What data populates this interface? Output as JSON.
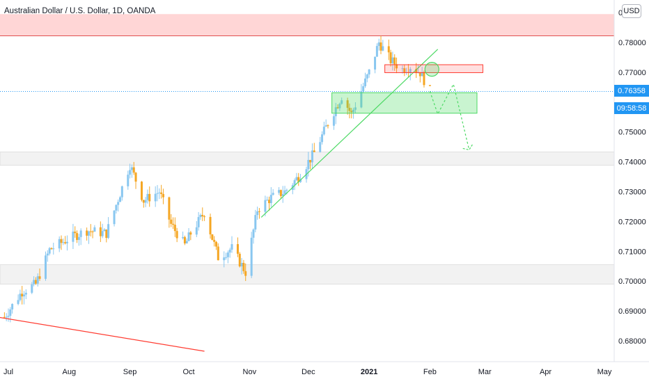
{
  "header": {
    "symbol_title": "Australian Dollar / U.S. Dollar, 1D, OANDA",
    "currency_button": "USD"
  },
  "price_badges": {
    "last_price": "0.76358",
    "countdown": "09:58:58"
  },
  "colors": {
    "up": "#89c7f0",
    "down": "#f5a623",
    "trendline": "#4cd964",
    "downline": "#ff3b30",
    "resistance_fill": "#ffd6d6",
    "badge": "#2196f3"
  },
  "chart_data": {
    "type": "candlestick",
    "title": "Australian Dollar / U.S. Dollar, 1D, OANDA",
    "x_ticks": [
      {
        "label": "Jul",
        "date": "2020-07-01"
      },
      {
        "label": "Aug",
        "date": "2020-08-01"
      },
      {
        "label": "Sep",
        "date": "2020-09-01"
      },
      {
        "label": "Oct",
        "date": "2020-10-01"
      },
      {
        "label": "Nov",
        "date": "2020-11-01"
      },
      {
        "label": "Dec",
        "date": "2020-12-01"
      },
      {
        "label": "2021",
        "date": "2021-01-01"
      },
      {
        "label": "Feb",
        "date": "2021-02-01"
      },
      {
        "label": "Mar",
        "date": "2021-03-01"
      },
      {
        "label": "Apr",
        "date": "2021-04-01"
      },
      {
        "label": "May",
        "date": "2021-05-01"
      }
    ],
    "y_ticks": [
      "0.68000",
      "0.69000",
      "0.70000",
      "0.71000",
      "0.72000",
      "0.73000",
      "0.74000",
      "0.75000",
      "0.77000",
      "0.78000"
    ],
    "y_top_partial": "0.",
    "ylim": [
      0.6765,
      0.7895
    ],
    "last_price": 0.76358,
    "close_path": [
      {
        "date": "2020-06-29",
        "close": 0.688
      },
      {
        "date": "2020-07-08",
        "close": 0.6965
      },
      {
        "date": "2020-07-15",
        "close": 0.699
      },
      {
        "date": "2020-07-22",
        "close": 0.7105
      },
      {
        "date": "2020-07-31",
        "close": 0.714
      },
      {
        "date": "2020-08-10",
        "close": 0.717
      },
      {
        "date": "2020-08-20",
        "close": 0.716
      },
      {
        "date": "2020-09-01",
        "close": 0.739
      },
      {
        "date": "2020-09-08",
        "close": 0.727
      },
      {
        "date": "2020-09-16",
        "close": 0.73
      },
      {
        "date": "2020-09-22",
        "close": 0.719
      },
      {
        "date": "2020-09-29",
        "close": 0.712
      },
      {
        "date": "2020-10-02",
        "close": 0.716
      },
      {
        "date": "2020-10-09",
        "close": 0.723
      },
      {
        "date": "2020-10-16",
        "close": 0.708
      },
      {
        "date": "2020-10-23",
        "close": 0.711
      },
      {
        "date": "2020-10-30",
        "close": 0.703
      },
      {
        "date": "2020-11-05",
        "close": 0.724
      },
      {
        "date": "2020-11-12",
        "close": 0.728
      },
      {
        "date": "2020-11-19",
        "close": 0.73
      },
      {
        "date": "2020-11-26",
        "close": 0.735
      },
      {
        "date": "2020-12-04",
        "close": 0.743
      },
      {
        "date": "2020-12-11",
        "close": 0.753
      },
      {
        "date": "2020-12-18",
        "close": 0.762
      },
      {
        "date": "2020-12-23",
        "close": 0.756
      },
      {
        "date": "2021-01-01",
        "close": 0.77
      },
      {
        "date": "2021-01-06",
        "close": 0.78
      },
      {
        "date": "2021-01-12",
        "close": 0.774
      },
      {
        "date": "2021-01-18",
        "close": 0.771
      },
      {
        "date": "2021-01-22",
        "close": 0.772
      },
      {
        "date": "2021-01-27",
        "close": 0.77
      },
      {
        "date": "2021-02-01",
        "close": 0.7636
      }
    ],
    "zones": [
      {
        "kind": "resistance",
        "y1": 0.7822,
        "y2": 0.7895,
        "color": "#ffd6d6"
      },
      {
        "kind": "gray-zone",
        "y1": 0.7388,
        "y2": 0.7433,
        "color": "#f2f2f2"
      },
      {
        "kind": "gray-zone",
        "y1": 0.699,
        "y2": 0.7055,
        "color": "#f2f2f2"
      }
    ],
    "boxes": [
      {
        "kind": "red-box",
        "x1": "2021-01-09",
        "x2": "2021-02-28",
        "y1": 0.7708,
        "y2": 0.7716
      },
      {
        "kind": "green-box",
        "x1": "2020-12-13",
        "x2": "2021-02-25",
        "y1": 0.7586,
        "y2": 0.7608
      }
    ],
    "lines": [
      {
        "kind": "green-trendline",
        "x1": "2020-11-07",
        "y1": 0.7214,
        "x2": "2021-02-05",
        "y2": 0.7777
      },
      {
        "kind": "red-downline",
        "x1": "2020-06-25",
        "y1": 0.688,
        "x2": "2020-10-09",
        "y2": 0.6765
      }
    ],
    "projection": [
      {
        "date": "2021-02-01",
        "price": 0.7636
      },
      {
        "date": "2021-02-05",
        "price": 0.756
      },
      {
        "date": "2021-02-13",
        "price": 0.766
      },
      {
        "date": "2021-02-21",
        "price": 0.744
      }
    ],
    "circle": {
      "date": "2021-02-02",
      "price": 0.771
    }
  }
}
